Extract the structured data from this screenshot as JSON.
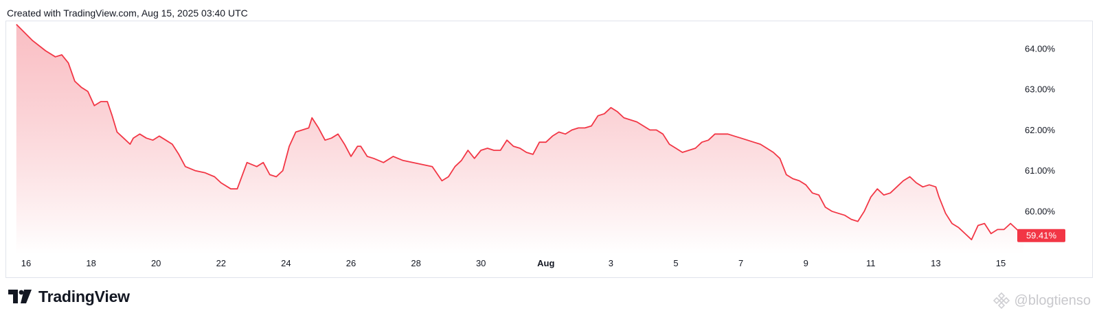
{
  "header": {
    "created_text": "Created with TradingView.com, Aug 15, 2025 03:40 UTC"
  },
  "brand": {
    "name": "TradingView",
    "logo_icon": "tradingview-logo-icon"
  },
  "watermark": {
    "text": "@blogtienso",
    "icon": "binance-diamond-icon"
  },
  "colors": {
    "line": "#f23645",
    "fill_top": "#f7a9b0",
    "fill_bottom": "#ffffff",
    "label_bg": "#f23645",
    "grid": "#e0e3eb"
  },
  "chart_data": {
    "type": "area",
    "title": "",
    "xlabel": "",
    "ylabel": "",
    "ylim": [
      59.2,
      65.0
    ],
    "y_ticks": [
      "64.00%",
      "63.00%",
      "62.00%",
      "61.00%",
      "60.00%"
    ],
    "y_tick_values": [
      64,
      63,
      62,
      61,
      60
    ],
    "x_ticks": [
      {
        "label": "16",
        "day": 0
      },
      {
        "label": "18",
        "day": 2
      },
      {
        "label": "20",
        "day": 4
      },
      {
        "label": "22",
        "day": 6
      },
      {
        "label": "24",
        "day": 8
      },
      {
        "label": "26",
        "day": 10
      },
      {
        "label": "28",
        "day": 12
      },
      {
        "label": "30",
        "day": 14
      },
      {
        "label": "Aug",
        "day": 16,
        "bold": true
      },
      {
        "label": "3",
        "day": 18
      },
      {
        "label": "5",
        "day": 20
      },
      {
        "label": "7",
        "day": 22
      },
      {
        "label": "9",
        "day": 24
      },
      {
        "label": "11",
        "day": 26
      },
      {
        "label": "13",
        "day": 28
      },
      {
        "label": "15",
        "day": 30
      }
    ],
    "series": [
      {
        "points": [
          [
            -0.3,
            64.6
          ],
          [
            0.2,
            64.2
          ],
          [
            0.6,
            63.95
          ],
          [
            0.9,
            63.8
          ],
          [
            1.1,
            63.85
          ],
          [
            1.3,
            63.65
          ],
          [
            1.5,
            63.2
          ],
          [
            1.7,
            63.05
          ],
          [
            1.9,
            62.95
          ],
          [
            2.1,
            62.6
          ],
          [
            2.3,
            62.7
          ],
          [
            2.5,
            62.7
          ],
          [
            2.65,
            62.35
          ],
          [
            2.8,
            61.95
          ],
          [
            3.0,
            61.8
          ],
          [
            3.2,
            61.65
          ],
          [
            3.3,
            61.8
          ],
          [
            3.5,
            61.9
          ],
          [
            3.7,
            61.8
          ],
          [
            3.9,
            61.75
          ],
          [
            4.1,
            61.85
          ],
          [
            4.3,
            61.75
          ],
          [
            4.5,
            61.65
          ],
          [
            4.7,
            61.4
          ],
          [
            4.9,
            61.1
          ],
          [
            5.2,
            61.0
          ],
          [
            5.5,
            60.95
          ],
          [
            5.8,
            60.85
          ],
          [
            6.0,
            60.7
          ],
          [
            6.3,
            60.55
          ],
          [
            6.5,
            60.55
          ],
          [
            6.8,
            61.2
          ],
          [
            7.1,
            61.1
          ],
          [
            7.3,
            61.2
          ],
          [
            7.5,
            60.9
          ],
          [
            7.7,
            60.85
          ],
          [
            7.9,
            61.0
          ],
          [
            8.1,
            61.6
          ],
          [
            8.3,
            61.95
          ],
          [
            8.5,
            62.0
          ],
          [
            8.7,
            62.05
          ],
          [
            8.8,
            62.3
          ],
          [
            9.0,
            62.05
          ],
          [
            9.2,
            61.75
          ],
          [
            9.4,
            61.8
          ],
          [
            9.6,
            61.9
          ],
          [
            9.8,
            61.65
          ],
          [
            10.0,
            61.35
          ],
          [
            10.2,
            61.6
          ],
          [
            10.3,
            61.6
          ],
          [
            10.5,
            61.35
          ],
          [
            10.7,
            61.3
          ],
          [
            11.0,
            61.2
          ],
          [
            11.3,
            61.35
          ],
          [
            11.6,
            61.25
          ],
          [
            11.9,
            61.2
          ],
          [
            12.2,
            61.15
          ],
          [
            12.5,
            61.1
          ],
          [
            12.8,
            60.75
          ],
          [
            13.0,
            60.85
          ],
          [
            13.2,
            61.1
          ],
          [
            13.4,
            61.25
          ],
          [
            13.6,
            61.5
          ],
          [
            13.8,
            61.3
          ],
          [
            14.0,
            61.5
          ],
          [
            14.2,
            61.55
          ],
          [
            14.4,
            61.5
          ],
          [
            14.6,
            61.5
          ],
          [
            14.8,
            61.75
          ],
          [
            15.0,
            61.6
          ],
          [
            15.2,
            61.55
          ],
          [
            15.4,
            61.45
          ],
          [
            15.6,
            61.4
          ],
          [
            15.8,
            61.7
          ],
          [
            16.0,
            61.7
          ],
          [
            16.2,
            61.85
          ],
          [
            16.4,
            61.95
          ],
          [
            16.6,
            61.9
          ],
          [
            16.8,
            62.0
          ],
          [
            17.0,
            62.05
          ],
          [
            17.2,
            62.05
          ],
          [
            17.4,
            62.1
          ],
          [
            17.6,
            62.35
          ],
          [
            17.8,
            62.4
          ],
          [
            18.0,
            62.55
          ],
          [
            18.2,
            62.45
          ],
          [
            18.4,
            62.3
          ],
          [
            18.6,
            62.25
          ],
          [
            18.8,
            62.2
          ],
          [
            19.0,
            62.1
          ],
          [
            19.2,
            62.0
          ],
          [
            19.4,
            62.0
          ],
          [
            19.6,
            61.9
          ],
          [
            19.8,
            61.65
          ],
          [
            20.0,
            61.55
          ],
          [
            20.2,
            61.45
          ],
          [
            20.4,
            61.5
          ],
          [
            20.6,
            61.55
          ],
          [
            20.8,
            61.7
          ],
          [
            21.0,
            61.75
          ],
          [
            21.2,
            61.9
          ],
          [
            21.4,
            61.9
          ],
          [
            21.6,
            61.9
          ],
          [
            21.8,
            61.85
          ],
          [
            22.0,
            61.8
          ],
          [
            22.2,
            61.75
          ],
          [
            22.4,
            61.7
          ],
          [
            22.6,
            61.65
          ],
          [
            22.8,
            61.55
          ],
          [
            23.0,
            61.45
          ],
          [
            23.2,
            61.3
          ],
          [
            23.4,
            60.9
          ],
          [
            23.6,
            60.8
          ],
          [
            23.8,
            60.75
          ],
          [
            24.0,
            60.65
          ],
          [
            24.2,
            60.45
          ],
          [
            24.4,
            60.4
          ],
          [
            24.6,
            60.1
          ],
          [
            24.8,
            60.0
          ],
          [
            25.0,
            59.95
          ],
          [
            25.2,
            59.9
          ],
          [
            25.4,
            59.8
          ],
          [
            25.6,
            59.75
          ],
          [
            25.8,
            60.0
          ],
          [
            26.0,
            60.35
          ],
          [
            26.2,
            60.55
          ],
          [
            26.4,
            60.4
          ],
          [
            26.6,
            60.45
          ],
          [
            26.8,
            60.6
          ],
          [
            27.0,
            60.75
          ],
          [
            27.2,
            60.85
          ],
          [
            27.4,
            60.7
          ],
          [
            27.6,
            60.6
          ],
          [
            27.8,
            60.65
          ],
          [
            28.0,
            60.6
          ],
          [
            28.1,
            60.35
          ],
          [
            28.3,
            59.95
          ],
          [
            28.5,
            59.7
          ],
          [
            28.7,
            59.6
          ],
          [
            28.9,
            59.45
          ],
          [
            29.1,
            59.3
          ],
          [
            29.3,
            59.65
          ],
          [
            29.5,
            59.7
          ],
          [
            29.7,
            59.45
          ],
          [
            29.9,
            59.55
          ],
          [
            30.1,
            59.55
          ],
          [
            30.3,
            59.7
          ],
          [
            30.5,
            59.55
          ],
          [
            30.7,
            59.41
          ]
        ],
        "last_value_label": "59.41%"
      }
    ],
    "grid": false,
    "legend": "none"
  }
}
